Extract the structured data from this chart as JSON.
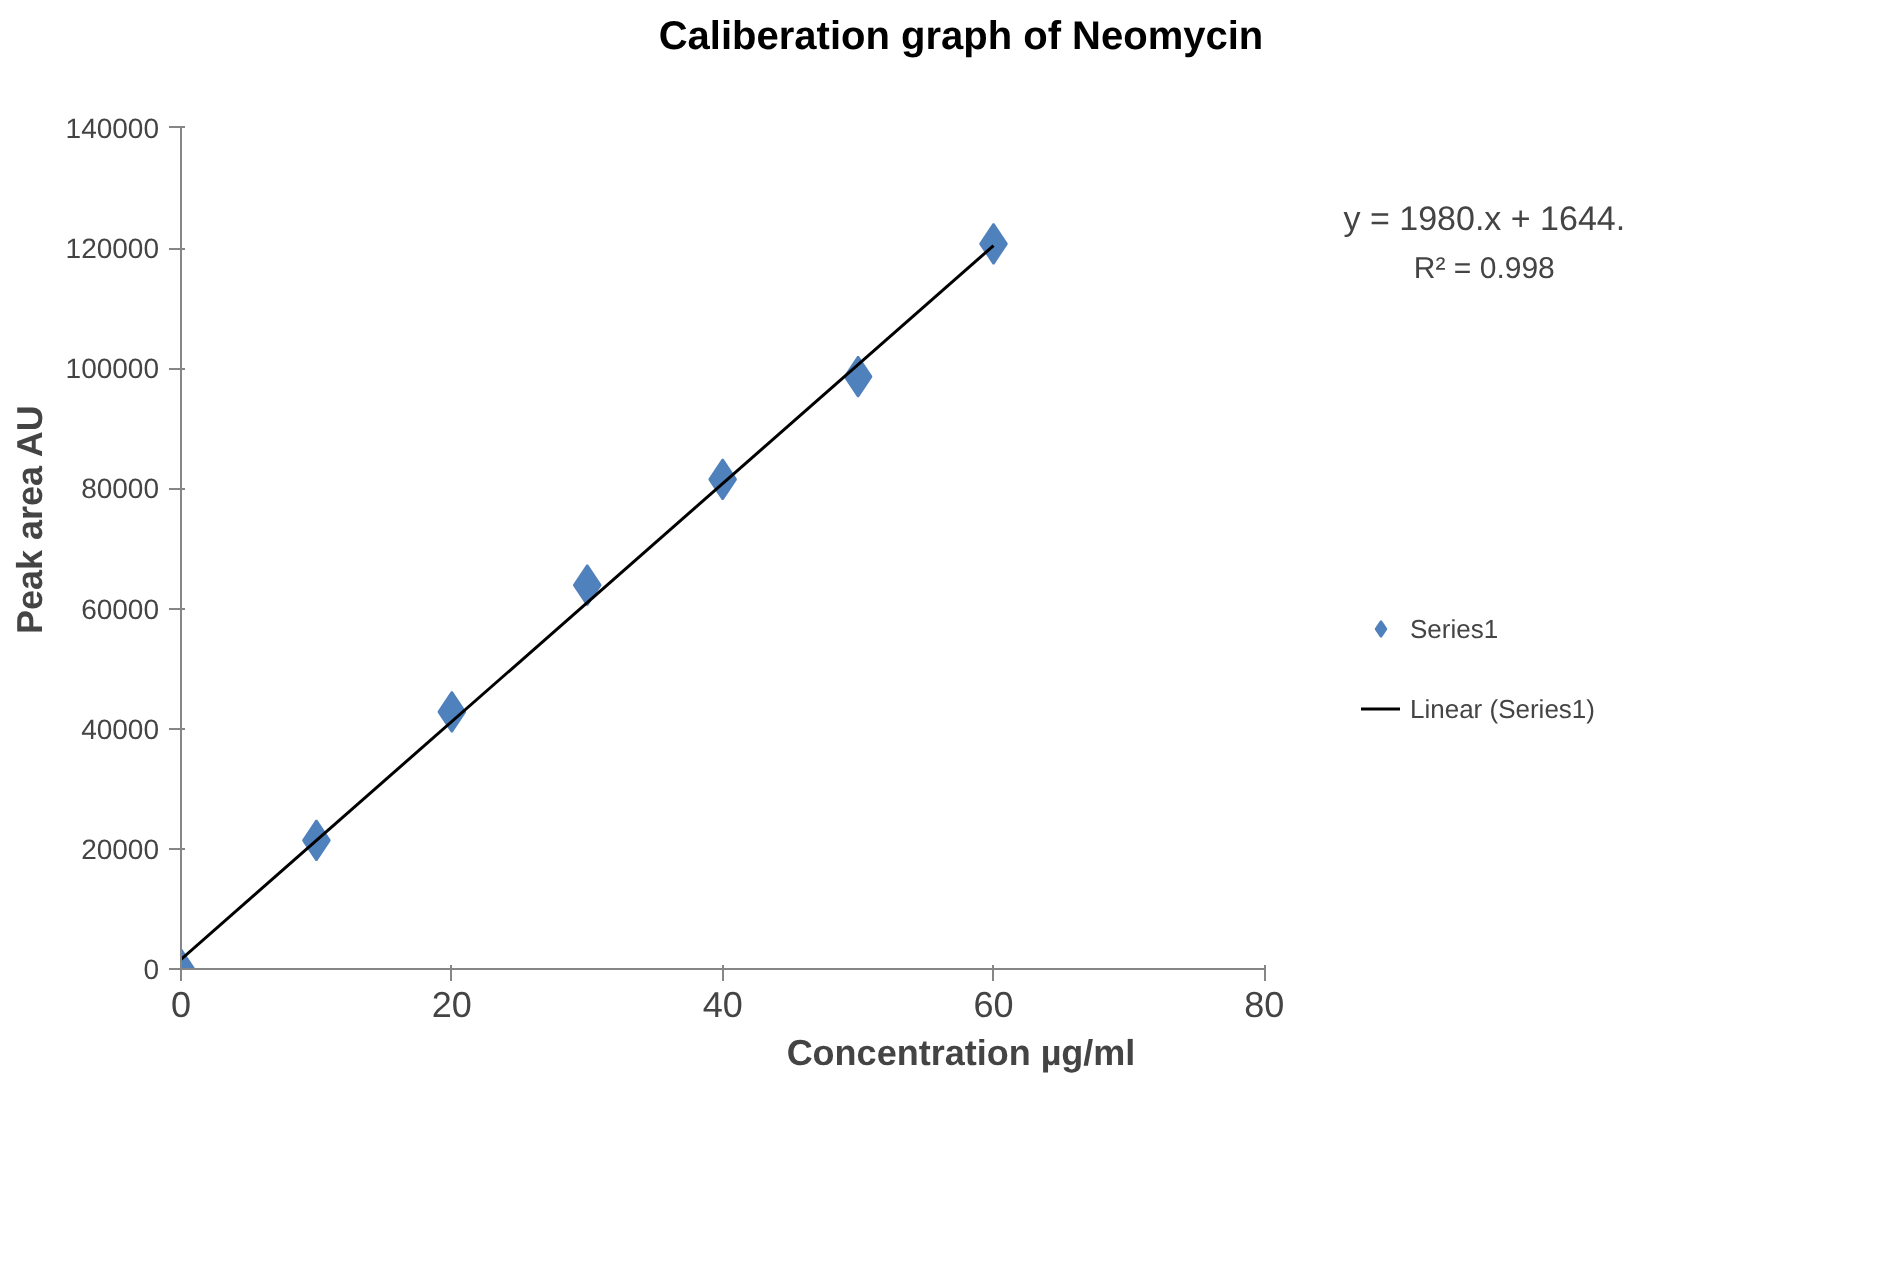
{
  "chart_data": {
    "type": "scatter",
    "title": "Caliberation graph of Neomycin",
    "xlabel": "Concentration µg/ml",
    "ylabel": "Peak area AU",
    "x": [
      0,
      10,
      20,
      30,
      40,
      50,
      60
    ],
    "series": [
      {
        "name": "Series1",
        "color": "#4f81bd",
        "marker": "diamond",
        "values": [
          0,
          21400,
          42800,
          63900,
          81500,
          98600,
          120700
        ]
      },
      {
        "name": "Linear (Series1)",
        "type": "line",
        "color": "#000000",
        "x": [
          0,
          60
        ],
        "values": [
          1600,
          120400
        ],
        "line_style": "solid"
      }
    ],
    "xlim": [
      0,
      80
    ],
    "xticks": [
      0,
      20,
      40,
      60,
      80
    ],
    "ylim": [
      0,
      140000
    ],
    "yticks": [
      0,
      20000,
      40000,
      60000,
      80000,
      100000,
      120000,
      140000
    ],
    "annotations": [
      "y = 1980.x + 1644.",
      "R² = 0.998"
    ],
    "grid": false,
    "legend": "right"
  }
}
